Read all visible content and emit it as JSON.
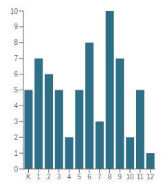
{
  "chart_data": {
    "type": "bar",
    "categories": [
      "K",
      "1",
      "2",
      "3",
      "4",
      "5",
      "6",
      "7",
      "8",
      "9",
      "10",
      "11",
      "12"
    ],
    "values": [
      5,
      7,
      6,
      5,
      2,
      5,
      8,
      3,
      10,
      7,
      2,
      5,
      1
    ],
    "color": "#2e6e87",
    "ylim": [
      0,
      10
    ],
    "yticks": [
      0,
      1,
      2,
      3,
      4,
      5,
      6,
      7,
      8,
      9,
      10
    ],
    "grid": false
  }
}
